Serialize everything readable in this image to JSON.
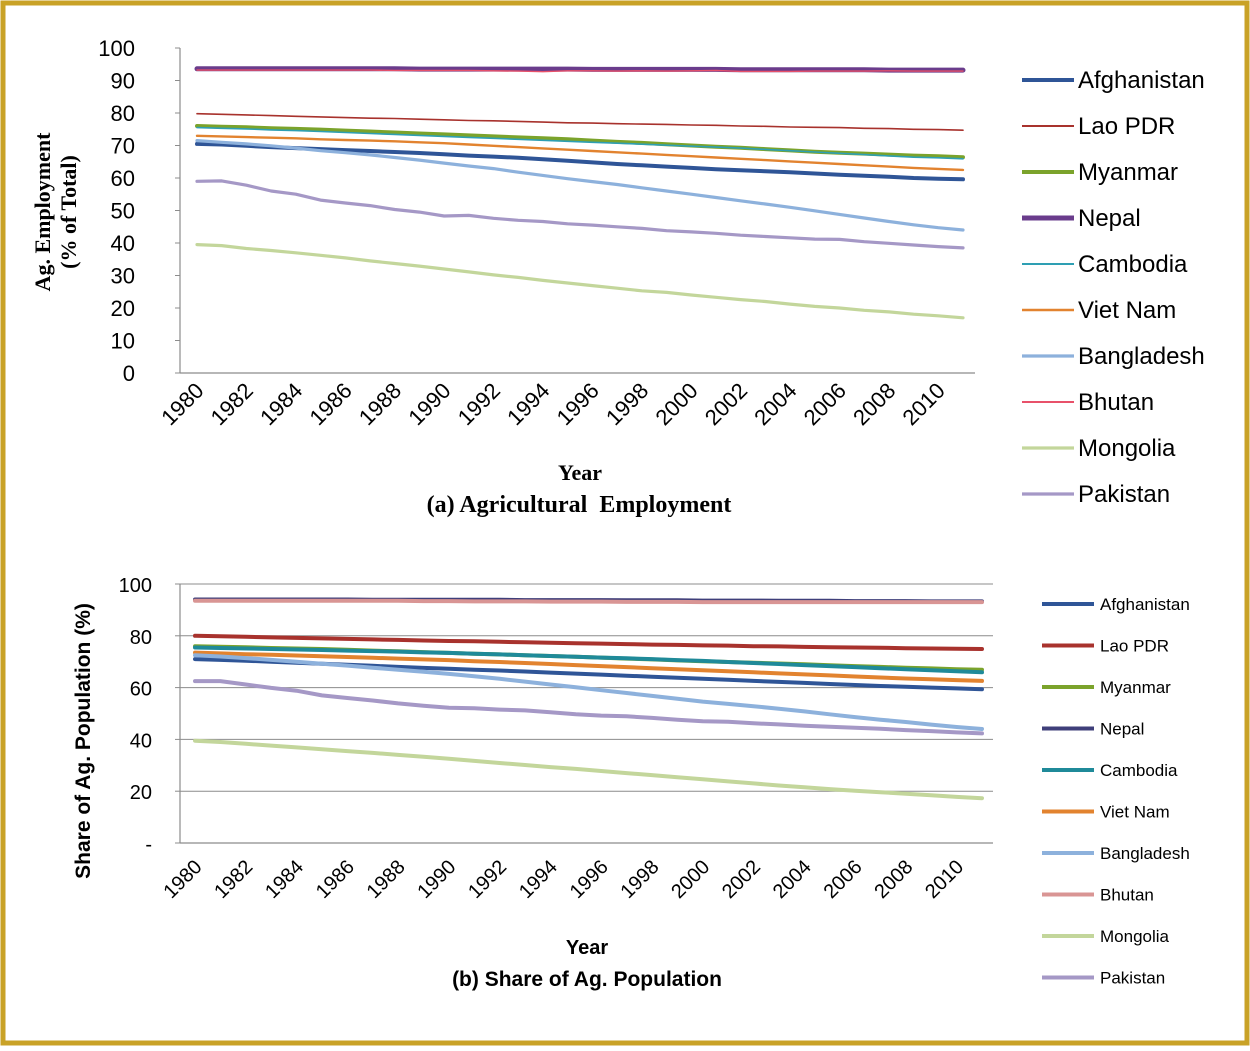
{
  "frame": {
    "border_color": "#C9A227"
  },
  "charts": [
    {
      "chart_data": {
        "type": "line",
        "title": "(a) Agricultural  Employment",
        "xlabel": "Year",
        "ylabel_line1": "Ag. Employment",
        "ylabel_line2": "(% of Total)",
        "ylim": [
          0,
          100
        ],
        "yticks": [
          "0",
          "10",
          "20",
          "30",
          "40",
          "50",
          "60",
          "70",
          "80",
          "90",
          "100"
        ],
        "x": [
          1980,
          1981,
          1982,
          1983,
          1984,
          1985,
          1986,
          1987,
          1988,
          1989,
          1990,
          1991,
          1992,
          1993,
          1994,
          1995,
          1996,
          1997,
          1998,
          1999,
          2000,
          2001,
          2002,
          2003,
          2004,
          2005,
          2006,
          2007,
          2008,
          2009,
          2010,
          2011
        ],
        "xticks": [
          "1980",
          "1982",
          "1984",
          "1986",
          "1988",
          "1990",
          "1992",
          "1994",
          "1996",
          "1998",
          "2000",
          "2002",
          "2004",
          "2006",
          "2008",
          "2010"
        ],
        "grid": false,
        "legend": "right",
        "series": [
          {
            "name": "Afghanistan",
            "color": "#2F5597",
            "values": [
              70.5,
              70.3,
              69.9,
              69.5,
              69.2,
              68.9,
              68.6,
              68.3,
              68.0,
              67.7,
              67.3,
              66.9,
              66.6,
              66.2,
              65.8,
              65.3,
              64.8,
              64.3,
              63.9,
              63.5,
              63.1,
              62.7,
              62.4,
              62.1,
              61.8,
              61.4,
              61.0,
              60.7,
              60.4,
              60.0,
              59.8,
              59.6
            ]
          },
          {
            "name": "Lao PDR",
            "color": "#A8322D",
            "values": [
              79.8,
              79.6,
              79.4,
              79.2,
              79.0,
              78.8,
              78.6,
              78.4,
              78.3,
              78.1,
              77.9,
              77.7,
              77.6,
              77.4,
              77.2,
              77.0,
              76.9,
              76.7,
              76.6,
              76.5,
              76.3,
              76.2,
              76.0,
              75.9,
              75.7,
              75.6,
              75.5,
              75.3,
              75.2,
              75.0,
              74.9,
              74.7
            ]
          },
          {
            "name": "Myanmar",
            "color": "#7BA32B",
            "values": [
              76.0,
              75.8,
              75.6,
              75.3,
              75.1,
              74.9,
              74.6,
              74.3,
              74.0,
              73.7,
              73.4,
              73.1,
              72.8,
              72.5,
              72.2,
              71.9,
              71.5,
              71.1,
              70.8,
              70.4,
              70.0,
              69.6,
              69.3,
              68.9,
              68.5,
              68.1,
              67.8,
              67.5,
              67.2,
              66.9,
              66.7,
              66.4
            ]
          },
          {
            "name": "Nepal",
            "color": "#6A3C8C",
            "values": [
              93.6,
              93.6,
              93.6,
              93.6,
              93.6,
              93.6,
              93.6,
              93.6,
              93.6,
              93.5,
              93.5,
              93.5,
              93.5,
              93.5,
              93.5,
              93.5,
              93.4,
              93.4,
              93.4,
              93.4,
              93.4,
              93.4,
              93.3,
              93.3,
              93.3,
              93.3,
              93.3,
              93.3,
              93.2,
              93.2,
              93.2,
              93.2
            ]
          },
          {
            "name": "Cambodia",
            "color": "#2E9FB3",
            "values": [
              75.5,
              75.3,
              75.1,
              74.8,
              74.6,
              74.3,
              74.0,
              73.7,
              73.4,
              73.1,
              72.8,
              72.5,
              72.2,
              71.9,
              71.6,
              71.3,
              71.0,
              70.7,
              70.4,
              70.1,
              69.8,
              69.5,
              69.2,
              68.8,
              68.4,
              68.0,
              67.6,
              67.2,
              66.8,
              66.4,
              66.2,
              65.9
            ]
          },
          {
            "name": "Viet Nam",
            "color": "#E2832F",
            "values": [
              73.0,
              72.8,
              72.6,
              72.4,
              72.2,
              71.9,
              71.7,
              71.5,
              71.3,
              71.0,
              70.7,
              70.3,
              69.9,
              69.5,
              69.1,
              68.7,
              68.3,
              67.9,
              67.5,
              67.1,
              66.7,
              66.3,
              65.9,
              65.5,
              65.1,
              64.7,
              64.3,
              63.9,
              63.5,
              63.1,
              62.8,
              62.5
            ]
          },
          {
            "name": "Bangladesh",
            "color": "#8DB1DC",
            "values": [
              71.5,
              71.0,
              70.5,
              69.9,
              69.2,
              68.4,
              67.8,
              67.1,
              66.3,
              65.5,
              64.6,
              63.7,
              62.9,
              61.8,
              60.8,
              59.8,
              58.9,
              58.0,
              57.0,
              56.0,
              55.0,
              54.0,
              53.0,
              52.0,
              51.0,
              49.9,
              48.8,
              47.7,
              46.6,
              45.6,
              44.7,
              44.0
            ]
          },
          {
            "name": "Bhutan",
            "color": "#E8516A",
            "values": [
              93.2,
              93.2,
              93.2,
              93.2,
              93.2,
              93.2,
              93.2,
              93.2,
              93.1,
              93.1,
              93.1,
              93.1,
              93.0,
              92.9,
              92.7,
              93.0,
              93.0,
              92.9,
              93.0,
              92.9,
              93.0,
              93.1,
              92.8,
              92.8,
              92.8,
              92.9,
              92.9,
              92.9,
              93.0,
              92.9,
              92.9,
              92.9
            ]
          },
          {
            "name": "Mongolia",
            "color": "#C3D69B",
            "values": [
              39.5,
              39.2,
              38.3,
              37.7,
              37.0,
              36.2,
              35.4,
              34.5,
              33.7,
              32.9,
              32.0,
              31.1,
              30.2,
              29.4,
              28.5,
              27.7,
              26.9,
              26.1,
              25.3,
              24.8,
              24.0,
              23.3,
              22.6,
              22.0,
              21.2,
              20.5,
              20.0,
              19.3,
              18.8,
              18.1,
              17.6,
              17.0
            ]
          },
          {
            "name": "Pakistan",
            "color": "#A598C6",
            "values": [
              59.0,
              59.1,
              57.8,
              56.0,
              55.0,
              53.2,
              52.3,
              51.5,
              50.3,
              49.5,
              48.3,
              48.5,
              47.6,
              47.0,
              46.6,
              45.9,
              45.5,
              45.0,
              44.5,
              43.8,
              43.4,
              43.0,
              42.4,
              42.0,
              41.6,
              41.2,
              41.1,
              40.4,
              39.9,
              39.4,
              38.9,
              38.5
            ]
          }
        ]
      }
    },
    {
      "chart_data": {
        "type": "line",
        "title": "(b) Share of Ag. Population",
        "xlabel": "Year",
        "ylabel": "Share of Ag. Population (%)",
        "ylim": [
          0,
          100
        ],
        "yticks": [
          "-",
          "20",
          "40",
          "60",
          "80",
          "100"
        ],
        "x": [
          1980,
          1981,
          1982,
          1983,
          1984,
          1985,
          1986,
          1987,
          1988,
          1989,
          1990,
          1991,
          1992,
          1993,
          1994,
          1995,
          1996,
          1997,
          1998,
          1999,
          2000,
          2001,
          2002,
          2003,
          2004,
          2005,
          2006,
          2007,
          2008,
          2009,
          2010,
          2011
        ],
        "xticks": [
          "1980",
          "1982",
          "1984",
          "1986",
          "1988",
          "1990",
          "1992",
          "1994",
          "1996",
          "1998",
          "2000",
          "2002",
          "2004",
          "2006",
          "2008",
          "2010"
        ],
        "grid": true,
        "legend": "right",
        "series": [
          {
            "name": "Afghanistan",
            "color": "#2F5597",
            "values": [
              71.0,
              70.7,
              70.4,
              70.0,
              69.6,
              69.2,
              68.8,
              68.4,
              68.0,
              67.6,
              67.3,
              66.9,
              66.6,
              66.2,
              65.8,
              65.4,
              65.0,
              64.6,
              64.2,
              63.8,
              63.4,
              63.0,
              62.6,
              62.2,
              61.8,
              61.4,
              61.0,
              60.6,
              60.3,
              60.0,
              59.7,
              59.4
            ]
          },
          {
            "name": "Lao PDR",
            "color": "#A8322D",
            "values": [
              80.0,
              79.8,
              79.6,
              79.4,
              79.2,
              79.0,
              78.8,
              78.6,
              78.4,
              78.2,
              78.0,
              77.9,
              77.7,
              77.5,
              77.3,
              77.1,
              77.0,
              76.8,
              76.6,
              76.5,
              76.3,
              76.2,
              76.0,
              75.9,
              75.7,
              75.6,
              75.5,
              75.4,
              75.2,
              75.1,
              75.0,
              74.9
            ]
          },
          {
            "name": "Myanmar",
            "color": "#7BA32B",
            "values": [
              76.0,
              75.8,
              75.6,
              75.3,
              75.1,
              74.9,
              74.6,
              74.3,
              74.0,
              73.7,
              73.4,
              73.1,
              72.8,
              72.5,
              72.2,
              71.9,
              71.6,
              71.2,
              70.9,
              70.5,
              70.2,
              69.9,
              69.6,
              69.3,
              69.0,
              68.6,
              68.3,
              68.0,
              67.7,
              67.4,
              67.1,
              66.9
            ]
          },
          {
            "name": "Nepal",
            "color": "#3F3F7A",
            "values": [
              94.0,
              94.0,
              94.0,
              94.0,
              94.0,
              94.0,
              94.0,
              93.9,
              93.9,
              93.9,
              93.9,
              93.9,
              93.9,
              93.8,
              93.8,
              93.8,
              93.8,
              93.7,
              93.7,
              93.7,
              93.6,
              93.6,
              93.6,
              93.5,
              93.5,
              93.5,
              93.4,
              93.4,
              93.4,
              93.3,
              93.3,
              93.3
            ]
          },
          {
            "name": "Cambodia",
            "color": "#1F8A99",
            "values": [
              75.5,
              75.3,
              75.1,
              74.9,
              74.7,
              74.5,
              74.3,
              74.1,
              73.9,
              73.6,
              73.4,
              73.1,
              72.8,
              72.5,
              72.2,
              71.9,
              71.6,
              71.3,
              71.0,
              70.6,
              70.3,
              69.9,
              69.5,
              69.1,
              68.7,
              68.3,
              67.9,
              67.5,
              67.1,
              66.7,
              66.3,
              65.9
            ]
          },
          {
            "name": "Viet Nam",
            "color": "#E2832F",
            "values": [
              73.5,
              73.2,
              72.9,
              72.7,
              72.4,
              72.1,
              71.8,
              71.5,
              71.2,
              70.9,
              70.6,
              70.2,
              69.9,
              69.5,
              69.1,
              68.7,
              68.3,
              67.9,
              67.5,
              67.1,
              66.7,
              66.3,
              65.9,
              65.5,
              65.1,
              64.7,
              64.3,
              63.9,
              63.5,
              63.2,
              62.9,
              62.6
            ]
          },
          {
            "name": "Bangladesh",
            "color": "#8DB1DC",
            "values": [
              72.5,
              72.0,
              71.4,
              70.7,
              70.0,
              69.2,
              68.5,
              67.7,
              66.9,
              66.1,
              65.3,
              64.4,
              63.4,
              62.3,
              61.2,
              60.1,
              59.0,
              57.9,
              56.8,
              55.7,
              54.6,
              53.7,
              52.8,
              51.8,
              50.8,
              49.7,
              48.6,
              47.6,
              46.7,
              45.7,
              44.8,
              44.0
            ]
          },
          {
            "name": "Bhutan",
            "color": "#D99594",
            "values": [
              93.5,
              93.5,
              93.5,
              93.5,
              93.5,
              93.5,
              93.5,
              93.5,
              93.5,
              93.4,
              93.4,
              93.3,
              93.3,
              93.3,
              93.2,
              93.2,
              93.2,
              93.1,
              93.1,
              93.1,
              93.0,
              93.0,
              93.0,
              93.0,
              93.0,
              93.0,
              93.0,
              93.0,
              93.0,
              93.0,
              93.0,
              93.0
            ]
          },
          {
            "name": "Mongolia",
            "color": "#C3D69B",
            "values": [
              39.5,
              39.0,
              38.3,
              37.6,
              36.9,
              36.2,
              35.5,
              34.8,
              34.0,
              33.3,
              32.5,
              31.7,
              30.9,
              30.1,
              29.3,
              28.6,
              27.8,
              27.0,
              26.2,
              25.4,
              24.6,
              23.8,
              23.0,
              22.2,
              21.5,
              20.8,
              20.2,
              19.6,
              19.0,
              18.4,
              17.8,
              17.3
            ]
          },
          {
            "name": "Pakistan",
            "color": "#A598C6",
            "values": [
              62.5,
              62.5,
              61.2,
              59.9,
              58.8,
              57.0,
              56.0,
              55.0,
              53.9,
              53.0,
              52.2,
              52.0,
              51.5,
              51.2,
              50.5,
              49.7,
              49.2,
              48.9,
              48.3,
              47.6,
              47.0,
              46.8,
              46.2,
              45.8,
              45.3,
              44.9,
              44.5,
              44.1,
              43.6,
              43.2,
              42.7,
              42.3
            ]
          }
        ]
      }
    }
  ]
}
